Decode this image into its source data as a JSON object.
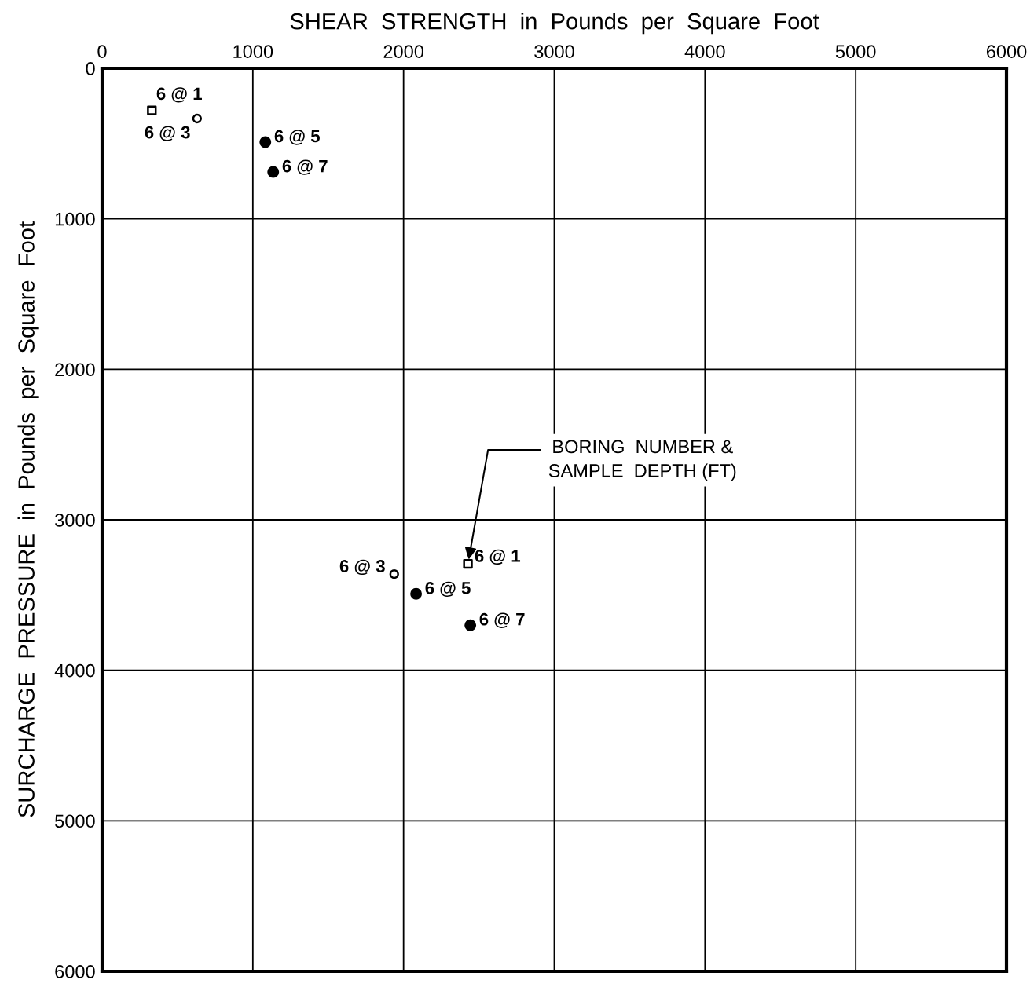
{
  "chart_data": {
    "type": "scatter",
    "xlabel": "SHEAR  STRENGTH  in  Pounds  per  Square  Foot",
    "ylabel": "SURCHARGE  PRESSURE  in  Pounds  per  Square  Foot",
    "xlim": [
      0,
      6000
    ],
    "xticks": [
      0,
      1000,
      2000,
      3000,
      4000,
      5000,
      6000
    ],
    "ylim": [
      6000,
      0
    ],
    "yticks": [
      0,
      1000,
      2000,
      3000,
      4000,
      5000,
      6000
    ],
    "grid": true,
    "legend": false,
    "series": [
      {
        "marker": "square",
        "color": "#ffffff",
        "x": [
          330,
          2427
        ],
        "values": [
          280,
          3293
        ],
        "value_labels": [
          "6 @ 1",
          "6 @ 1"
        ]
      },
      {
        "marker": "circle",
        "color": "#ffffff",
        "x": [
          630,
          1938
        ],
        "values": [
          334,
          3361
        ],
        "value_labels": [
          "6 @ 3",
          "6 @ 3"
        ]
      },
      {
        "marker": "circle",
        "color": "#000000",
        "x": [
          1083,
          1135,
          2083,
          2443
        ],
        "values": [
          490,
          689,
          3492,
          3700
        ],
        "value_labels": [
          "6 @ 5",
          "6 @ 7",
          "6 @ 5",
          "6 @ 7"
        ]
      }
    ],
    "annotations": [
      {
        "text": "BORING  NUMBER &\nSAMPLE  DEPTH (FT)",
        "x": 2427,
        "y": 3293
      }
    ]
  }
}
